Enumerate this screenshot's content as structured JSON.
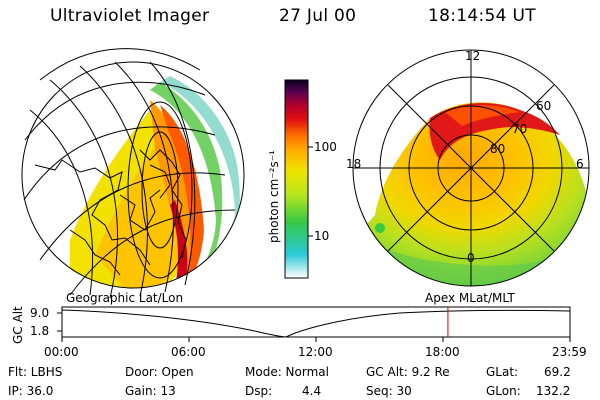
{
  "header": {
    "instrument": "Ultraviolet Imager",
    "date": "27 Jul 00",
    "time": "18:14:54 UT"
  },
  "colorbar": {
    "unit_label": "photon cm⁻²s⁻¹",
    "ticks": [
      "100",
      "10"
    ],
    "stops": [
      "#ffffff",
      "#2bc8d8",
      "#34c846",
      "#b6e61e",
      "#f0e400",
      "#ffb000",
      "#ff6e00",
      "#e01010",
      "#b4002c",
      "#5a0050",
      "#0a0020"
    ]
  },
  "geo_panel": {
    "label": "Geographic Lat/Lon"
  },
  "polar_panel": {
    "label": "Apex MLat/MLT",
    "mlt_labels": [
      "12",
      "18",
      "6",
      "0"
    ],
    "lat_labels": [
      "60",
      "70",
      "80"
    ]
  },
  "altitude_plot": {
    "ylabel": "GC Alt",
    "yticks": [
      "9.0",
      "1.8"
    ],
    "xticks": [
      "00:00",
      "06:00",
      "12:00",
      "18:00",
      "23:59"
    ],
    "marker_time": "18:14",
    "marker_color": "#cc0000"
  },
  "info": {
    "flt": "Flt: LBHS",
    "ip": "IP: 36.0",
    "door": "Door: Open",
    "gain": "Gain: 13",
    "mode": "Mode: Normal",
    "dsp_label": "Dsp:",
    "dsp_value": "4.4",
    "gc_alt": "GC Alt: 9.2 Re",
    "seq": "Seq: 30",
    "glat_label": "GLat:",
    "glat_value": "69.2",
    "glon_label": "GLon:",
    "glon_value": "132.2"
  }
}
